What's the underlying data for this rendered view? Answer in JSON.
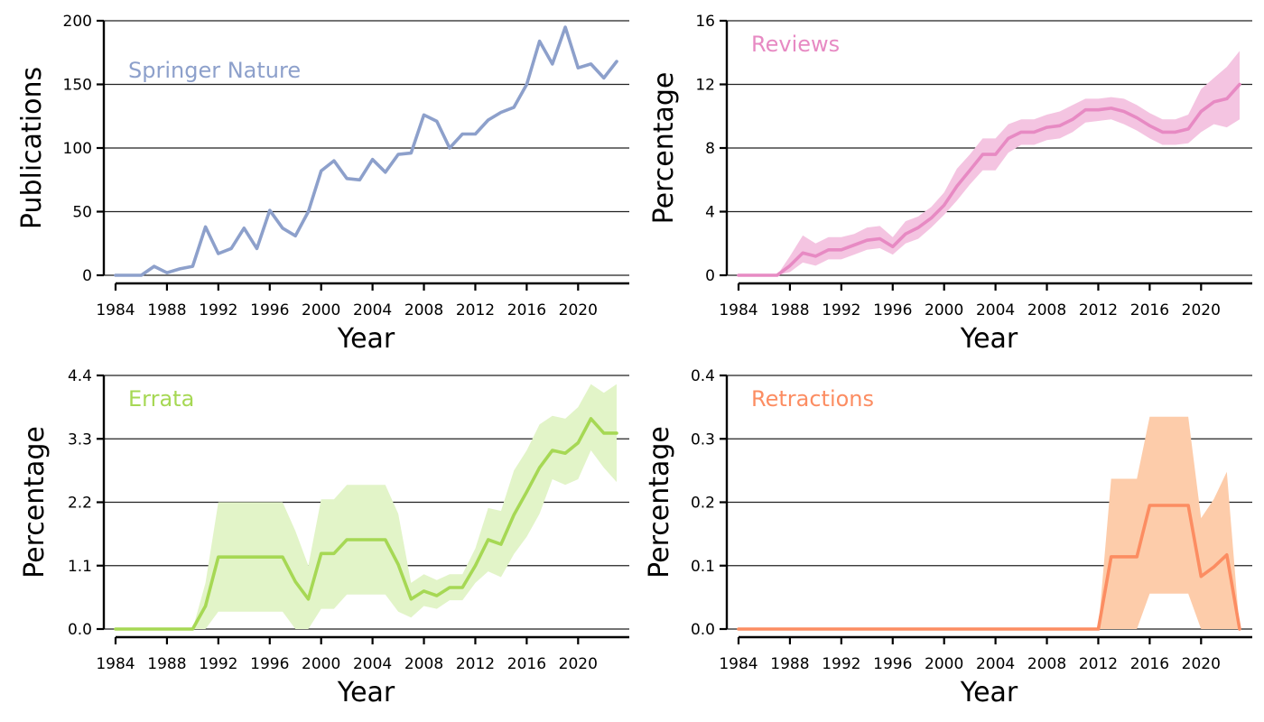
{
  "chart_data": [
    {
      "type": "line",
      "label": "Springer Nature",
      "color": "#8da0cb",
      "xlabel": "Year",
      "ylabel": "Publications",
      "xlim": [
        1984,
        2023
      ],
      "ylim": [
        0,
        200
      ],
      "xticks": [
        1984,
        1988,
        1992,
        1996,
        2000,
        2004,
        2008,
        2012,
        2016,
        2020
      ],
      "yticks": [
        "0",
        "50",
        "100",
        "150",
        "200"
      ],
      "grid": "horizontal",
      "series": [
        {
          "x": [
            1984,
            1985,
            1986,
            1987,
            1988,
            1989,
            1990,
            1991,
            1992,
            1993,
            1994,
            1995,
            1996,
            1997,
            1998,
            1999,
            2000,
            2001,
            2002,
            2003,
            2004,
            2005,
            2006,
            2007,
            2008,
            2009,
            2010,
            2011,
            2012,
            2013,
            2014,
            2015,
            2016,
            2017,
            2018,
            2019,
            2020,
            2021,
            2022,
            2023
          ],
          "y": [
            0,
            0,
            0,
            7,
            2,
            5,
            7,
            38,
            17,
            21,
            37,
            21,
            51,
            37,
            31,
            50,
            82,
            90,
            76,
            75,
            91,
            81,
            95,
            96,
            126,
            121,
            100,
            111,
            111,
            122,
            128,
            132,
            150,
            184,
            166,
            195,
            163,
            166,
            155,
            168
          ]
        }
      ]
    },
    {
      "type": "area",
      "label": "Reviews",
      "color": "#e78ac3",
      "band_color": "#f4c4e1",
      "xlabel": "Year",
      "ylabel": "Percentage",
      "xlim": [
        1984,
        2023
      ],
      "ylim": [
        0,
        16
      ],
      "xticks": [
        1984,
        1988,
        1992,
        1996,
        2000,
        2004,
        2008,
        2012,
        2016,
        2020
      ],
      "yticks": [
        "0",
        "4",
        "8",
        "12",
        "16"
      ],
      "grid": "horizontal",
      "series": [
        {
          "x": [
            1984,
            1985,
            1986,
            1987,
            1988,
            1989,
            1990,
            1991,
            1992,
            1993,
            1994,
            1995,
            1996,
            1997,
            1998,
            1999,
            2000,
            2001,
            2002,
            2003,
            2004,
            2005,
            2006,
            2007,
            2008,
            2009,
            2010,
            2011,
            2012,
            2013,
            2014,
            2015,
            2016,
            2017,
            2018,
            2019,
            2020,
            2021,
            2022,
            2023
          ],
          "y": [
            0,
            0,
            0,
            0,
            0.6,
            1.4,
            1.2,
            1.6,
            1.6,
            1.9,
            2.2,
            2.3,
            1.8,
            2.6,
            3.0,
            3.6,
            4.4,
            5.6,
            6.6,
            7.6,
            7.6,
            8.6,
            9.0,
            9.0,
            9.3,
            9.4,
            9.8,
            10.4,
            10.4,
            10.5,
            10.3,
            9.9,
            9.4,
            9.0,
            9.0,
            9.2,
            10.3,
            10.9,
            11.1,
            12.0
          ],
          "lower": [
            0,
            0,
            0,
            0,
            0.2,
            0.8,
            0.6,
            1.0,
            1.0,
            1.3,
            1.6,
            1.7,
            1.3,
            2.0,
            2.3,
            3.0,
            3.8,
            4.7,
            5.7,
            6.6,
            6.6,
            7.7,
            8.2,
            8.2,
            8.5,
            8.6,
            9.0,
            9.6,
            9.7,
            9.8,
            9.5,
            9.1,
            8.6,
            8.2,
            8.2,
            8.3,
            9.0,
            9.5,
            9.3,
            9.8
          ],
          "upper": [
            0,
            0,
            0,
            0,
            1.2,
            2.5,
            2.0,
            2.4,
            2.4,
            2.6,
            3.0,
            3.1,
            2.4,
            3.4,
            3.7,
            4.3,
            5.2,
            6.7,
            7.6,
            8.6,
            8.6,
            9.5,
            9.8,
            9.8,
            10.1,
            10.3,
            10.7,
            11.1,
            11.1,
            11.2,
            11.1,
            10.7,
            10.2,
            9.8,
            9.8,
            10.1,
            11.7,
            12.4,
            13.1,
            14.1
          ]
        }
      ]
    },
    {
      "type": "area",
      "label": "Errata",
      "color": "#a6d854",
      "band_color": "#e2f4c8",
      "xlabel": "Year",
      "ylabel": "Percentage",
      "xlim": [
        1984,
        2023
      ],
      "ylim": [
        0,
        4.4
      ],
      "xticks": [
        1984,
        1988,
        1992,
        1996,
        2000,
        2004,
        2008,
        2012,
        2016,
        2020
      ],
      "yticks": [
        "0.0",
        "1.1",
        "2.2",
        "3.3",
        "4.4"
      ],
      "grid": "horizontal",
      "series": [
        {
          "x": [
            1984,
            1985,
            1986,
            1987,
            1988,
            1989,
            1990,
            1991,
            1992,
            1993,
            1994,
            1995,
            1996,
            1997,
            1998,
            1999,
            2000,
            2001,
            2002,
            2003,
            2004,
            2005,
            2006,
            2007,
            2008,
            2009,
            2010,
            2011,
            2012,
            2013,
            2014,
            2015,
            2016,
            2017,
            2018,
            2019,
            2020,
            2021,
            2022,
            2023
          ],
          "y": [
            0,
            0,
            0,
            0,
            0,
            0,
            0,
            0.4,
            1.25,
            1.25,
            1.25,
            1.25,
            1.25,
            1.25,
            0.82,
            0.52,
            1.31,
            1.31,
            1.55,
            1.55,
            1.55,
            1.55,
            1.12,
            0.52,
            0.66,
            0.58,
            0.72,
            0.72,
            1.1,
            1.55,
            1.47,
            1.98,
            2.38,
            2.8,
            3.1,
            3.05,
            3.23,
            3.65,
            3.4,
            3.4
          ],
          "lower": [
            0,
            0,
            0,
            0,
            0,
            0,
            0,
            0,
            0.3,
            0.3,
            0.3,
            0.3,
            0.3,
            0.3,
            0,
            0,
            0.35,
            0.35,
            0.6,
            0.6,
            0.6,
            0.6,
            0.3,
            0.2,
            0.4,
            0.35,
            0.5,
            0.5,
            0.8,
            1.0,
            0.9,
            1.3,
            1.6,
            2.0,
            2.6,
            2.5,
            2.6,
            3.1,
            2.8,
            2.55
          ],
          "upper": [
            0,
            0,
            0,
            0,
            0,
            0,
            0,
            0.8,
            2.2,
            2.2,
            2.2,
            2.2,
            2.2,
            2.2,
            1.7,
            1.1,
            2.25,
            2.25,
            2.5,
            2.5,
            2.5,
            2.5,
            2.0,
            0.8,
            0.95,
            0.85,
            0.95,
            0.95,
            1.4,
            2.1,
            2.05,
            2.75,
            3.1,
            3.55,
            3.7,
            3.65,
            3.85,
            4.25,
            4.1,
            4.25
          ]
        }
      ]
    },
    {
      "type": "area",
      "label": "Retractions",
      "color": "#fc8d62",
      "band_color": "#fdccaa",
      "xlabel": "Year",
      "ylabel": "Percentage",
      "xlim": [
        1984,
        2023
      ],
      "ylim": [
        0,
        0.4
      ],
      "xticks": [
        1984,
        1988,
        1992,
        1996,
        2000,
        2004,
        2008,
        2012,
        2016,
        2020
      ],
      "yticks": [
        "0.0",
        "0.1",
        "0.2",
        "0.3",
        "0.4"
      ],
      "grid": "horizontal",
      "series": [
        {
          "x": [
            1984,
            1985,
            1986,
            1987,
            1988,
            1989,
            1990,
            1991,
            1992,
            1993,
            1994,
            1995,
            1996,
            1997,
            1998,
            1999,
            2000,
            2001,
            2002,
            2003,
            2004,
            2005,
            2006,
            2007,
            2008,
            2009,
            2010,
            2011,
            2012,
            2013,
            2014,
            2015,
            2016,
            2017,
            2018,
            2019,
            2020,
            2021,
            2022,
            2023
          ],
          "y": [
            0,
            0,
            0,
            0,
            0,
            0,
            0,
            0,
            0,
            0,
            0,
            0,
            0,
            0,
            0,
            0,
            0,
            0,
            0,
            0,
            0,
            0,
            0,
            0,
            0,
            0,
            0,
            0,
            0,
            0.114,
            0.114,
            0.114,
            0.195,
            0.195,
            0.195,
            0.195,
            0.083,
            0.098,
            0.117,
            0
          ],
          "lower": [
            0,
            0,
            0,
            0,
            0,
            0,
            0,
            0,
            0,
            0,
            0,
            0,
            0,
            0,
            0,
            0,
            0,
            0,
            0,
            0,
            0,
            0,
            0,
            0,
            0,
            0,
            0,
            0,
            0,
            0,
            0,
            0,
            0.056,
            0.056,
            0.056,
            0.056,
            0,
            0,
            0,
            0
          ],
          "upper": [
            0,
            0,
            0,
            0,
            0,
            0,
            0,
            0,
            0,
            0,
            0,
            0,
            0,
            0,
            0,
            0,
            0,
            0,
            0,
            0,
            0,
            0,
            0,
            0,
            0,
            0,
            0,
            0,
            0,
            0.237,
            0.237,
            0.237,
            0.335,
            0.335,
            0.335,
            0.335,
            0.175,
            0.205,
            0.248,
            0
          ]
        }
      ]
    }
  ]
}
